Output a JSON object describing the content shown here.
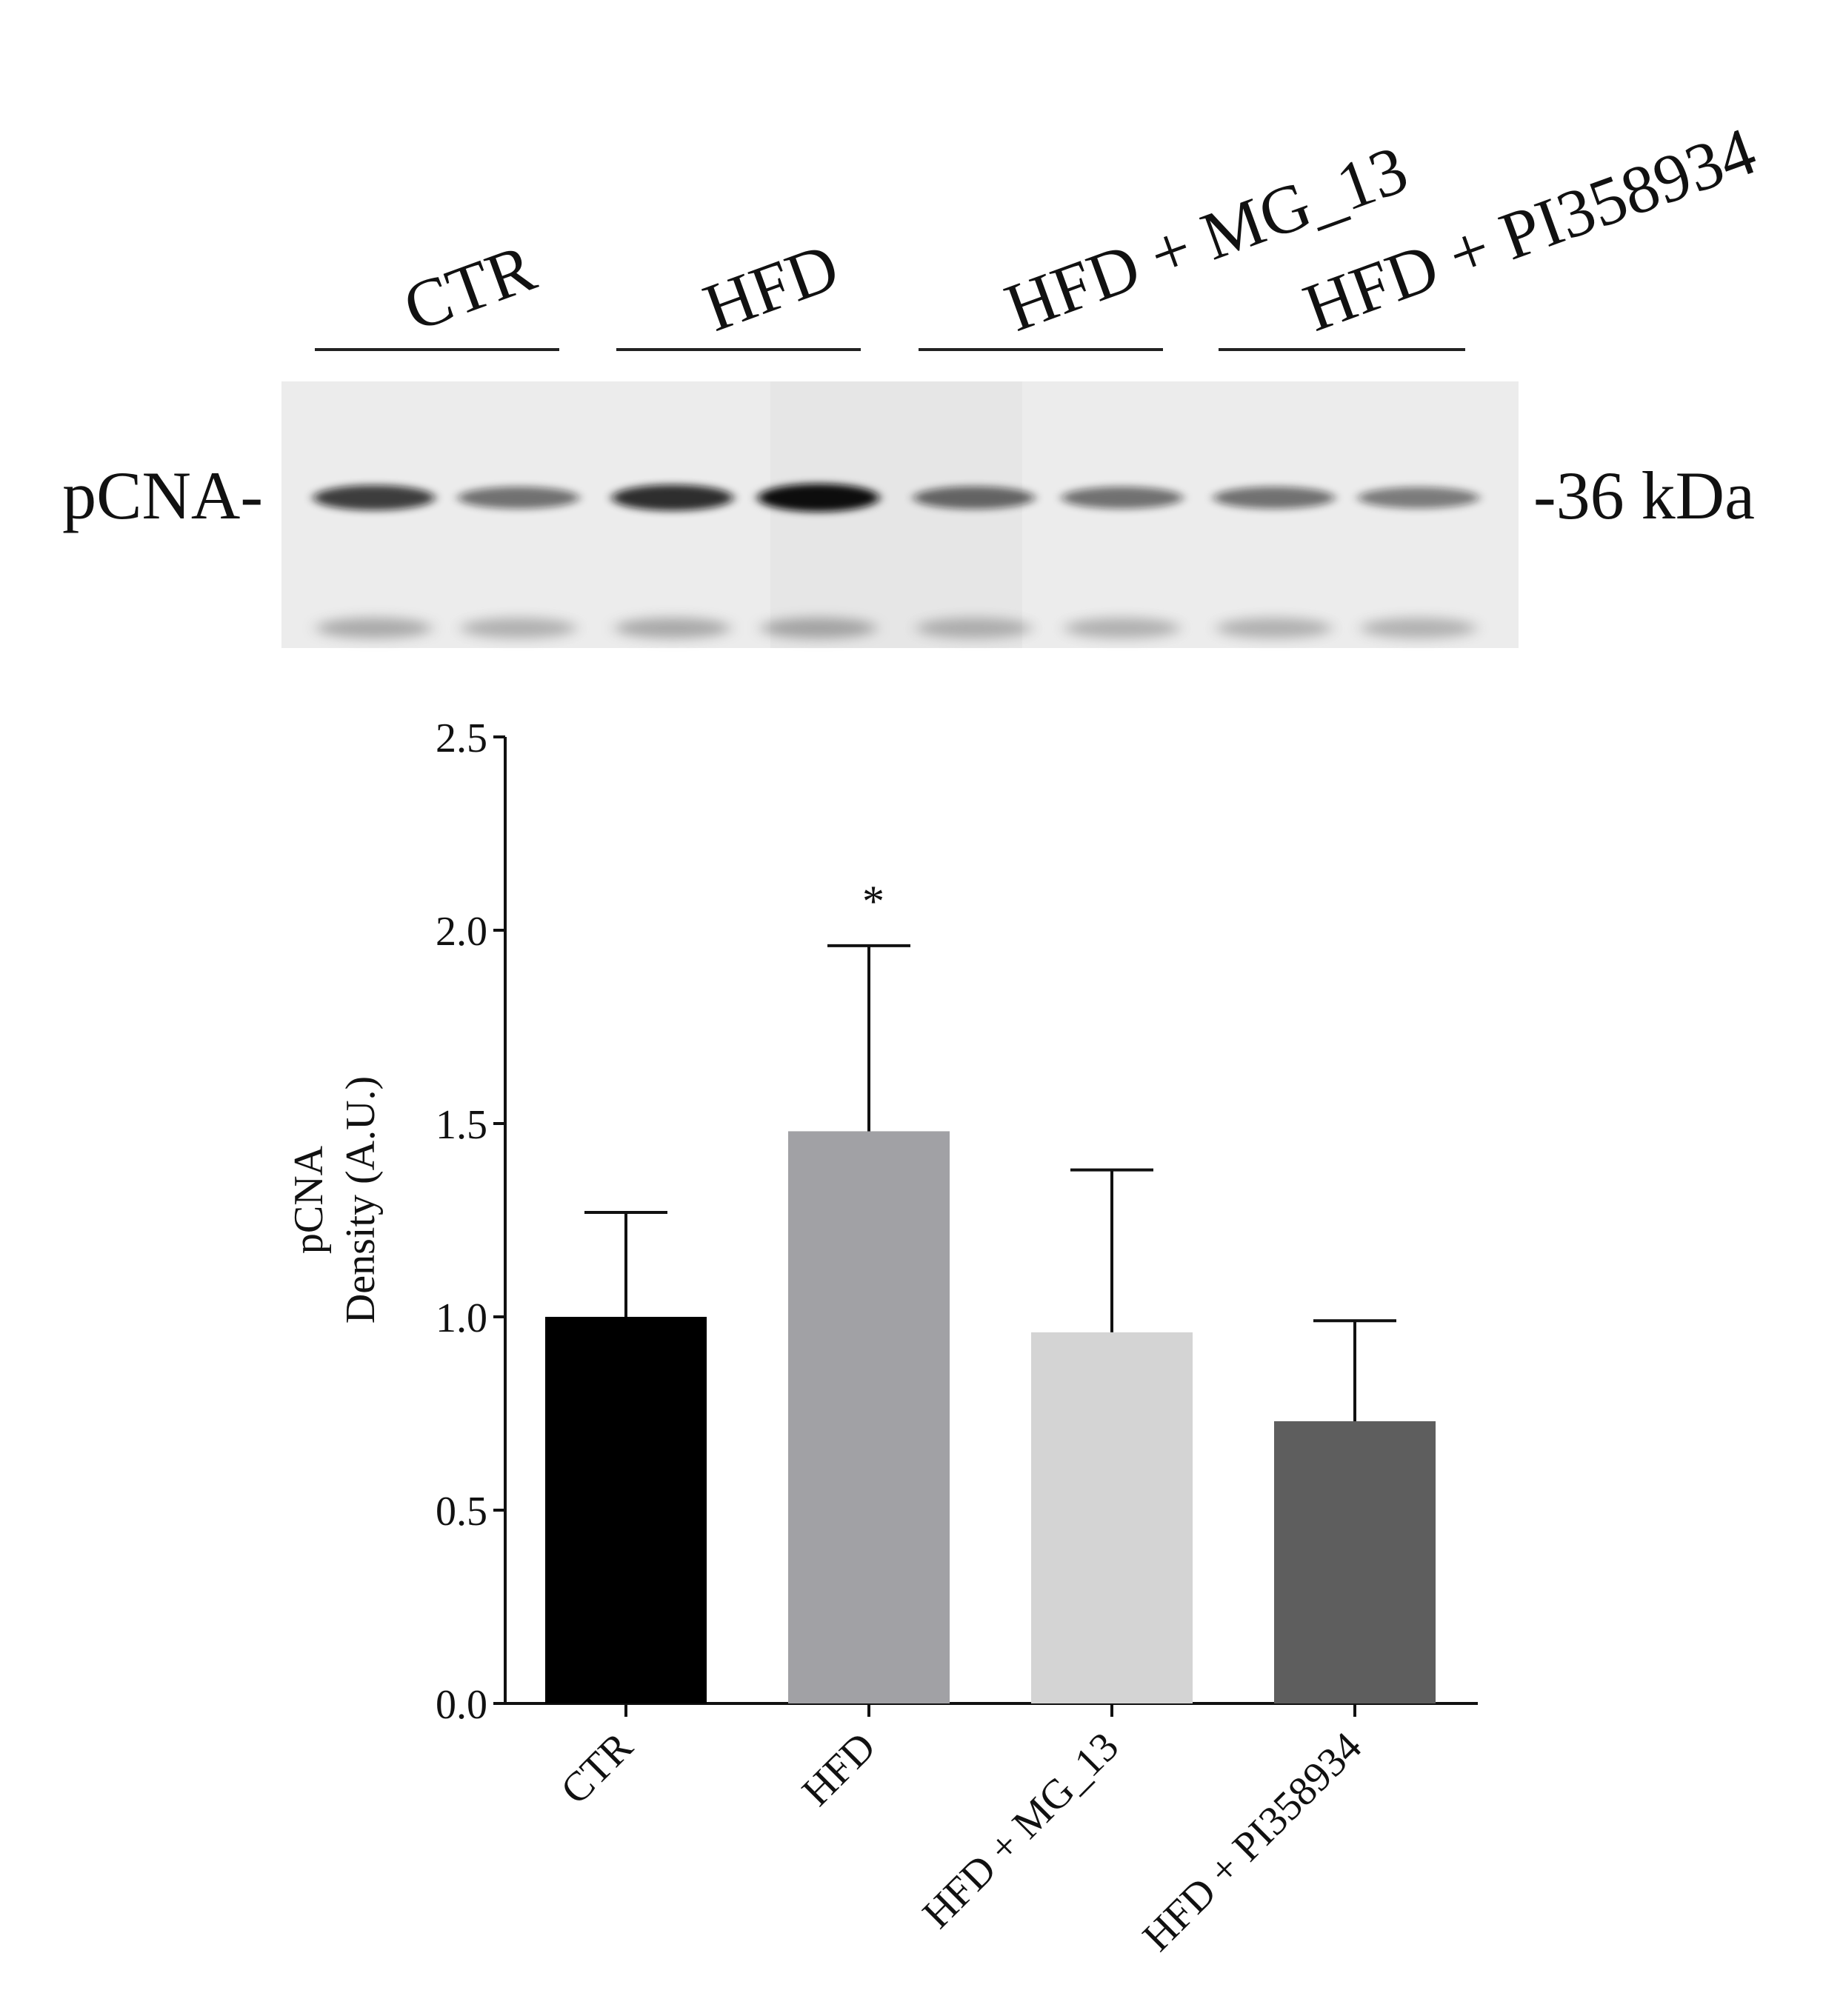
{
  "blot": {
    "groups": [
      "CTR",
      "HFD",
      "HFD + MG_13",
      "HFD + PI358934"
    ],
    "protein_label": "pCNA-",
    "marker_label": "-36 kDa",
    "band_intensity": [
      [
        0.78,
        0.55
      ],
      [
        0.85,
        1.0
      ],
      [
        0.6,
        0.55
      ],
      [
        0.55,
        0.5
      ]
    ]
  },
  "chart_data": {
    "type": "bar",
    "categories": [
      "CTR",
      "HFD",
      "HFD + MG_13",
      "HFD + PI358934"
    ],
    "values": [
      1.0,
      1.48,
      0.96,
      0.73
    ],
    "error_upper": [
      1.27,
      1.96,
      1.38,
      0.99
    ],
    "bar_colors": [
      "#000000",
      "#a1a1a5",
      "#d4d4d4",
      "#5e5e5e"
    ],
    "significance": [
      "",
      "*",
      "",
      ""
    ],
    "ylabel": [
      "pCNA",
      "Density (A.U.)"
    ],
    "yticks": [
      "0.0",
      "0.5",
      "1.0",
      "1.5",
      "2.0",
      "2.5"
    ],
    "ylim": [
      0,
      2.5
    ],
    "xlabel": "",
    "title": ""
  }
}
